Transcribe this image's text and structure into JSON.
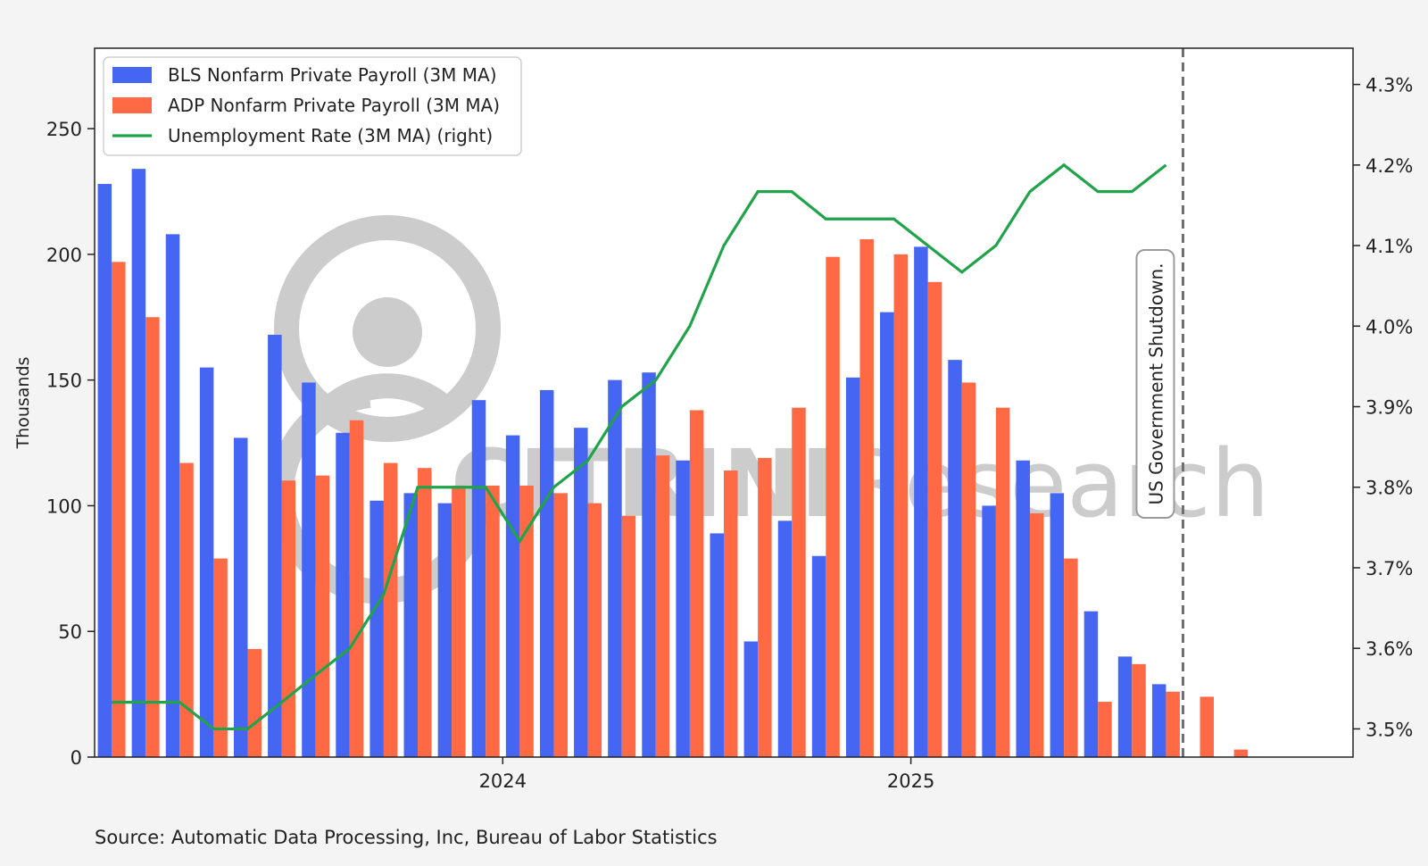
{
  "source_text": "Source: Automatic Data Processing, Inc, Bureau of Labor Statistics",
  "watermark": {
    "text_bold": "CITRINI",
    "text_light": "Research"
  },
  "annotation": {
    "text": "US Government Shutdown."
  },
  "colors": {
    "background": "#f4f4f4",
    "plot_background": "#ffffff",
    "bls": "#4466f2",
    "adp": "#ff6a45",
    "unemployment": "#22a24a",
    "axis": "#222222",
    "dashed_line": "#6e6e6e",
    "watermark": "#9a9a9a"
  },
  "chart_data": {
    "type": "bar",
    "title": "",
    "ylabel": "Thousands",
    "ylabel_right": "",
    "ylim": [
      0,
      282
    ],
    "ylim_right": [
      3.465,
      4.345
    ],
    "yticks": [
      0,
      50,
      100,
      150,
      200,
      250
    ],
    "yticks_right": [
      3.5,
      3.6,
      3.7,
      3.8,
      3.9,
      4.0,
      4.1,
      4.2,
      4.3
    ],
    "ytick_right_labels": [
      "3.5%",
      "3.6%",
      "3.7%",
      "3.8%",
      "3.9%",
      "4.0%",
      "4.1%",
      "4.2%",
      "4.3%"
    ],
    "x_tick_labels": [
      {
        "label": "2024",
        "index": 11
      },
      {
        "label": "2025",
        "index": 23
      }
    ],
    "categories": [
      "2023-01",
      "2023-02",
      "2023-03",
      "2023-04",
      "2023-05",
      "2023-06",
      "2023-07",
      "2023-08",
      "2023-09",
      "2023-10",
      "2023-11",
      "2023-12",
      "2024-01",
      "2024-02",
      "2024-03",
      "2024-04",
      "2024-05",
      "2024-06",
      "2024-07",
      "2024-08",
      "2024-09",
      "2024-10",
      "2024-11",
      "2024-12",
      "2025-01",
      "2025-02",
      "2025-03",
      "2025-04",
      "2025-05",
      "2025-06",
      "2025-07",
      "2025-08",
      "2025-09",
      "2025-10",
      "2025-11",
      "2025-12",
      "2026-01"
    ],
    "legend_position": "top-left",
    "grid": false,
    "series": [
      {
        "name": "BLS Nonfarm Private Payroll (3M MA)",
        "type": "bar",
        "color": "#4466f2",
        "values": [
          228,
          234,
          208,
          155,
          127,
          168,
          149,
          129,
          102,
          105,
          101,
          142,
          128,
          146,
          131,
          150,
          153,
          118,
          89,
          46,
          94,
          80,
          151,
          177,
          203,
          158,
          100,
          118,
          105,
          58,
          40,
          29,
          null,
          null,
          null,
          null,
          null
        ]
      },
      {
        "name": "ADP Nonfarm Private Payroll (3M MA)",
        "type": "bar",
        "color": "#ff6a45",
        "values": [
          197,
          175,
          117,
          79,
          43,
          110,
          112,
          134,
          117,
          115,
          108,
          108,
          108,
          105,
          101,
          96,
          120,
          138,
          114,
          119,
          139,
          199,
          206,
          200,
          189,
          149,
          139,
          97,
          79,
          22,
          37,
          26,
          24,
          3,
          null,
          null,
          null
        ]
      },
      {
        "name": "Unemployment Rate (3M MA) (right)",
        "type": "line",
        "axis": "right",
        "color": "#22a24a",
        "values": [
          3.533,
          3.533,
          3.533,
          3.5,
          3.5,
          3.533,
          3.567,
          3.6,
          3.667,
          3.8,
          3.8,
          3.8,
          3.733,
          3.8,
          3.833,
          3.9,
          3.933,
          4.0,
          4.1,
          4.167,
          4.167,
          4.133,
          4.133,
          4.133,
          4.1,
          4.067,
          4.1,
          4.167,
          4.2,
          4.167,
          4.167,
          4.2,
          null,
          null,
          null,
          null,
          null
        ]
      }
    ],
    "annotation_index": 31
  }
}
